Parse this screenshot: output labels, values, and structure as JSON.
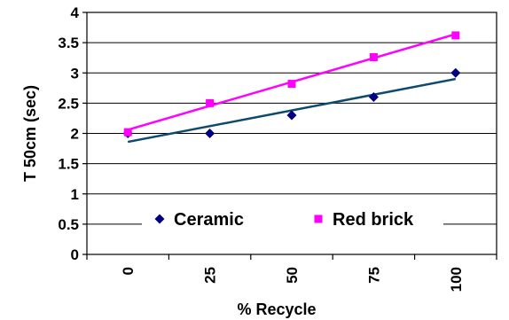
{
  "chart_data": {
    "type": "scatter",
    "title": "",
    "xlabel": "% Recycle",
    "ylabel": "T 50cm (sec)",
    "x": [
      0,
      25,
      50,
      75,
      100
    ],
    "x_tick_labels": [
      "0",
      "25",
      "50",
      "75",
      "100"
    ],
    "ylim": [
      0,
      4
    ],
    "y_tick_labels": [
      "0",
      "0.5",
      "1",
      "1.5",
      "2",
      "2.5",
      "3",
      "3.5",
      "4"
    ],
    "grid": true,
    "legend_position": "inside-bottom-center",
    "series": [
      {
        "name": "Ceramic",
        "marker": "diamond",
        "color": "#000080",
        "trendline_color": "#0E4A6B",
        "values": [
          2.0,
          2.0,
          2.3,
          2.6,
          3.0
        ],
        "trendline": [
          1.86,
          2.9
        ]
      },
      {
        "name": "Red brick",
        "marker": "square",
        "color": "#FF00FF",
        "trendline_color": "#FF00FF",
        "values": [
          2.02,
          2.5,
          2.82,
          3.26,
          3.62
        ],
        "trendline": [
          2.06,
          3.64
        ]
      }
    ]
  }
}
